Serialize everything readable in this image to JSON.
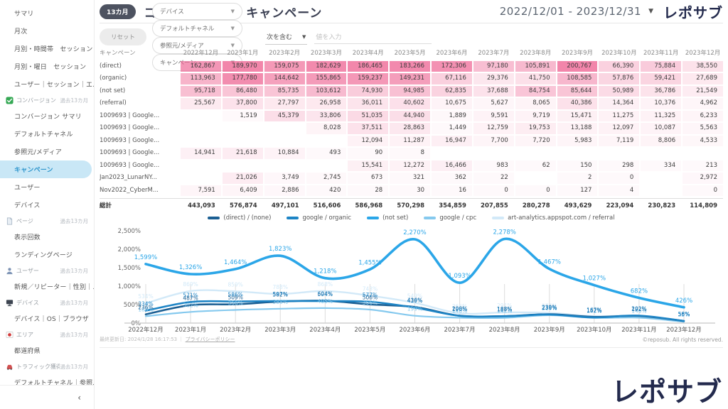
{
  "header": {
    "badge": "13カ月",
    "title": "コンバージョン　キャンペーン",
    "date_range": "2022/12/01 - 2023/12/31",
    "caret": "▼",
    "logo": "レポサブ"
  },
  "filters": {
    "reset_label": "リセット",
    "dropdowns": [
      "デバイス",
      "デフォルトチャネル",
      "参照元/メディア",
      "キャンペーン"
    ],
    "condition_label": "次を含む",
    "condition_caret": "▼",
    "value_placeholder": "値を入力"
  },
  "sidebar": {
    "collapse_icon": "‹",
    "items": [
      {
        "type": "link",
        "label": "サマリ"
      },
      {
        "type": "link",
        "label": "月次"
      },
      {
        "type": "link",
        "label": "月別・時間帯　セッション"
      },
      {
        "type": "link",
        "label": "月別・曜日　セッション"
      },
      {
        "type": "link",
        "label": "ユーザー｜セッション｜エ..."
      },
      {
        "type": "section",
        "icon": "checkbox-icon",
        "label": "コンバージョン",
        "period": "過去13カ月"
      },
      {
        "type": "link",
        "label": "コンバージョン サマリ"
      },
      {
        "type": "link",
        "label": "デフォルトチャネル"
      },
      {
        "type": "link",
        "label": "参照元/メディア"
      },
      {
        "type": "link",
        "label": "キャンペーン",
        "selected": true
      },
      {
        "type": "link",
        "label": "ユーザー"
      },
      {
        "type": "link",
        "label": "デバイス"
      },
      {
        "type": "section",
        "icon": "page-icon",
        "label": "ページ",
        "period": "過去13カ月"
      },
      {
        "type": "link",
        "label": "表示回数"
      },
      {
        "type": "link",
        "label": "ランディングページ"
      },
      {
        "type": "section",
        "icon": "user-icon",
        "label": "ユーザー",
        "period": "過去13カ月"
      },
      {
        "type": "link",
        "label": "新規／リピーター｜性別｜..."
      },
      {
        "type": "section",
        "icon": "device-icon",
        "label": "デバイス",
        "period": "過去13カ月"
      },
      {
        "type": "link",
        "label": "デバイス｜OS｜ブラウザ"
      },
      {
        "type": "section",
        "icon": "area-icon",
        "label": "エリア",
        "period": "過去13カ月"
      },
      {
        "type": "link",
        "label": "都道府県"
      },
      {
        "type": "section",
        "icon": "traffic-icon",
        "label": "トラフィック獲得",
        "period": "過去13カ月"
      },
      {
        "type": "link",
        "label": "デフォルトチャネル｜参照..."
      },
      {
        "type": "section",
        "icon": "acquisition-icon",
        "label": "ユーザー獲得",
        "period": "過去13カ月"
      },
      {
        "type": "link",
        "label": "デフォルトチャネル｜参照..."
      }
    ]
  },
  "table": {
    "label_column": "キャンペーン",
    "columns": [
      "2022年12月",
      "2023年1月",
      "2023年2月",
      "2023年3月",
      "2023年4月",
      "2023年5月",
      "2023年6月",
      "2023年7月",
      "2023年8月",
      "2023年9月",
      "2023年10月",
      "2023年11月",
      "2023年12月"
    ],
    "heat_color": "#ed5c8d",
    "heat_max": 200767,
    "rows": [
      {
        "label": "(direct)",
        "values": [
          162867,
          189970,
          159075,
          182629,
          186465,
          183266,
          172306,
          97180,
          105891,
          200767,
          66390,
          75884,
          38550
        ]
      },
      {
        "label": "(organic)",
        "values": [
          113963,
          177780,
          144642,
          155865,
          159237,
          149231,
          67116,
          29376,
          41750,
          108585,
          57876,
          59421,
          27689
        ]
      },
      {
        "label": "(not set)",
        "values": [
          95718,
          86480,
          85735,
          103612,
          74930,
          94985,
          62835,
          37688,
          84754,
          85644,
          50989,
          36786,
          21549
        ]
      },
      {
        "label": "(referral)",
        "values": [
          25567,
          37800,
          27797,
          26958,
          36011,
          40602,
          10675,
          5627,
          8065,
          40386,
          14364,
          10376,
          4962
        ]
      },
      {
        "label": "1009693 | Google...",
        "values": [
          null,
          1519,
          45379,
          33806,
          51035,
          44940,
          1889,
          9591,
          9719,
          15471,
          11275,
          11325,
          6233
        ]
      },
      {
        "label": "1009693 | Google...",
        "values": [
          null,
          null,
          null,
          8028,
          37511,
          28863,
          1449,
          12759,
          19753,
          13188,
          12097,
          10087,
          5563
        ]
      },
      {
        "label": "1009693 | Google...",
        "values": [
          null,
          null,
          null,
          null,
          12094,
          11287,
          16947,
          7700,
          7720,
          5983,
          7119,
          8806,
          4533
        ]
      },
      {
        "label": "1009693 | Google...",
        "values": [
          14941,
          21618,
          10884,
          493,
          90,
          8,
          null,
          null,
          null,
          null,
          null,
          null,
          null
        ]
      },
      {
        "label": "1009693 | Google...",
        "values": [
          null,
          null,
          null,
          null,
          15541,
          12272,
          16466,
          983,
          62,
          150,
          298,
          334,
          213
        ]
      },
      {
        "label": "Jan2023_LunarNY...",
        "values": [
          null,
          21026,
          3749,
          2745,
          673,
          321,
          362,
          22,
          null,
          2,
          0,
          null,
          2972
        ]
      },
      {
        "label": "Nov2022_CyberM...",
        "values": [
          7591,
          6409,
          2886,
          420,
          28,
          30,
          16,
          0,
          0,
          127,
          4,
          null,
          0
        ]
      }
    ],
    "total": {
      "label": "総計",
      "values": [
        443093,
        576874,
        497101,
        516606,
        586968,
        570298,
        354859,
        207855,
        280278,
        493629,
        223094,
        230823,
        114809
      ]
    }
  },
  "chart_data": {
    "type": "line",
    "title": "",
    "xlabel": "",
    "ylabel": "",
    "ylim": [
      0,
      2500
    ],
    "y_ticks": [
      0,
      500,
      1000,
      1500,
      2000,
      2500
    ],
    "grid": false,
    "legend_position": "top-center",
    "categories": [
      "2022年12月",
      "2023年1月",
      "2023年2月",
      "2023年3月",
      "2023年4月",
      "2023年5月",
      "2023年6月",
      "2023年7月",
      "2023年8月",
      "2023年9月",
      "2023年10月",
      "2023年11月",
      "2023年12月"
    ],
    "value_suffix": "%",
    "series": [
      {
        "name": "(direct) / (none)",
        "color": "#1b5f93",
        "width": 2.6,
        "values": [
          236,
          487,
          509,
          582,
          604,
          506,
          436,
          200,
          188,
          239,
          167,
          192,
          56
        ]
      },
      {
        "name": "google / organic",
        "color": "#1d84c5",
        "width": 2.6,
        "values": [
          334,
          571,
          586,
          597,
          594,
          577,
          419,
          196,
          187,
          230,
          152,
          202,
          58
        ]
      },
      {
        "name": "(not set)",
        "color": "#2ba6e8",
        "width": 3.6,
        "values": [
          1599,
          1326,
          1464,
          1823,
          1218,
          1455,
          2270,
          1093,
          2278,
          1467,
          1027,
          682,
          426
        ]
      },
      {
        "name": "google / cpc",
        "color": "#85c9ee",
        "width": 2.2,
        "values": [
          186,
          302,
          356,
          388,
          405,
          366,
          199,
          146,
          142,
          214,
          142,
          146,
          35
        ]
      },
      {
        "name": "art-analytics.appspot.com / referral",
        "color": "#d2e9f8",
        "width": 2.4,
        "values": [
          534,
          869,
          859,
          788,
          868,
          743,
          549,
          266,
          291,
          277,
          187,
          202,
          56
        ]
      }
    ],
    "draw_order": [
      4,
      3,
      0,
      1,
      2
    ]
  },
  "footer": {
    "last_updated": "最終更新日: 2024/1/28 16:17:53",
    "separator": "｜",
    "privacy": "プライバシーポリシー",
    "copyright": "©reposub. All rights reserved.",
    "logo": "レポサブ"
  }
}
